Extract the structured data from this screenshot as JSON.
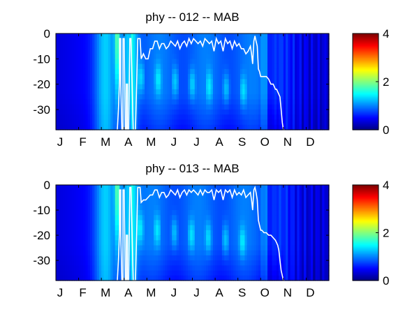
{
  "chart_data": [
    {
      "type": "heatmap",
      "title": "phy -- 012 -- MAB",
      "x_tick_labels": [
        "J",
        "F",
        "M",
        "A",
        "M",
        "J",
        "J",
        "A",
        "S",
        "O",
        "N",
        "D"
      ],
      "y_tick_labels": [
        "0",
        "-10",
        "-20",
        "-30"
      ],
      "ylim": [
        -38,
        0
      ],
      "colorbar": {
        "ticks": [
          "0",
          "2",
          "4"
        ],
        "range": [
          0,
          4
        ],
        "colormap": "jet"
      },
      "overlay_line": {
        "color": "#ffffff",
        "x_month": [
          2.7,
          2.75,
          2.8,
          2.8,
          2.85,
          2.85,
          2.9,
          2.95,
          2.95,
          3.0,
          3.05,
          3.1,
          3.1,
          3.15,
          3.15,
          3.2,
          3.25,
          3.3,
          3.35,
          3.4,
          3.5,
          3.6,
          3.7,
          3.75,
          3.85,
          3.95,
          4.05,
          4.15,
          4.25,
          4.35,
          4.45,
          4.55,
          4.65,
          4.75,
          4.85,
          4.95,
          5.05,
          5.15,
          5.25,
          5.35,
          5.45,
          5.55,
          5.65,
          5.75,
          5.85,
          5.95,
          6.05,
          6.15,
          6.25,
          6.35,
          6.45,
          6.55,
          6.65,
          6.75,
          6.85,
          6.95,
          7.05,
          7.15,
          7.25,
          7.35,
          7.45,
          7.55,
          7.65,
          7.75,
          7.85,
          7.95,
          8.05,
          8.15,
          8.25,
          8.35,
          8.45,
          8.55,
          8.6,
          8.65,
          8.7,
          8.75,
          8.8,
          8.85,
          8.9,
          8.95,
          9.0,
          9.05,
          9.15,
          9.25,
          9.35,
          9.45,
          9.55,
          9.65,
          9.7,
          9.75,
          9.8,
          9.85,
          9.9,
          9.95,
          10.0,
          10.05
        ],
        "depth_m": [
          -38,
          -30,
          -18,
          -2,
          -2,
          -20,
          -38,
          -38,
          -2,
          -2,
          -38,
          -38,
          -20,
          -20,
          -38,
          -38,
          -2,
          -2,
          -20,
          -38,
          -38,
          -2,
          -2,
          -10,
          -8,
          -10,
          -10,
          -6,
          -6,
          -3,
          -3,
          -6,
          -4,
          -4,
          -6,
          -5,
          -3,
          -4,
          -5,
          -3,
          -6,
          -4,
          -3,
          -5,
          -2,
          -4,
          -2,
          -3,
          -4,
          -3,
          -5,
          -2,
          -3,
          -4,
          -3,
          -7,
          -2,
          -4,
          -3,
          -7,
          -2,
          -4,
          -3,
          -6,
          -3,
          -5,
          -4,
          -6,
          -6,
          -8,
          -7,
          -5,
          -8,
          -12,
          -3,
          -1,
          -3,
          -5,
          -14,
          -15,
          -17,
          -17,
          -17,
          -17,
          -18,
          -20,
          -20,
          -22,
          -22,
          -23,
          -24,
          -25,
          -30,
          -35,
          -38,
          -38
        ]
      }
    },
    {
      "type": "heatmap",
      "title": "phy -- 013 -- MAB",
      "x_tick_labels": [
        "J",
        "F",
        "M",
        "A",
        "M",
        "J",
        "J",
        "A",
        "S",
        "O",
        "N",
        "D"
      ],
      "y_tick_labels": [
        "0",
        "-10",
        "-20",
        "-30"
      ],
      "ylim": [
        -38,
        0
      ],
      "colorbar": {
        "ticks": [
          "0",
          "2",
          "4"
        ],
        "range": [
          0,
          4
        ],
        "colormap": "jet"
      },
      "overlay_line": {
        "color": "#ffffff",
        "x_month": [
          2.7,
          2.75,
          2.8,
          2.8,
          2.85,
          2.85,
          2.9,
          2.95,
          2.95,
          3.0,
          3.05,
          3.1,
          3.1,
          3.15,
          3.15,
          3.2,
          3.25,
          3.3,
          3.35,
          3.4,
          3.5,
          3.6,
          3.7,
          3.75,
          3.85,
          3.95,
          4.05,
          4.15,
          4.25,
          4.35,
          4.45,
          4.55,
          4.65,
          4.75,
          4.85,
          4.95,
          5.05,
          5.15,
          5.25,
          5.35,
          5.45,
          5.55,
          5.65,
          5.75,
          5.85,
          5.95,
          6.05,
          6.15,
          6.25,
          6.35,
          6.45,
          6.55,
          6.65,
          6.75,
          6.85,
          6.95,
          7.05,
          7.15,
          7.25,
          7.35,
          7.45,
          7.55,
          7.65,
          7.75,
          7.85,
          7.95,
          8.05,
          8.15,
          8.25,
          8.35,
          8.45,
          8.55,
          8.6,
          8.65,
          8.7,
          8.75,
          8.8,
          8.85,
          8.9,
          8.95,
          9.0,
          9.05,
          9.15,
          9.25,
          9.35,
          9.45,
          9.55,
          9.65,
          9.7,
          9.75,
          9.8,
          9.85,
          9.9,
          9.95,
          10.0,
          10.05
        ],
        "depth_m": [
          -38,
          -30,
          -18,
          -2,
          -2,
          -20,
          -38,
          -38,
          -2,
          -2,
          -38,
          -38,
          -20,
          -20,
          -38,
          -38,
          -1,
          -1,
          -20,
          -38,
          -38,
          -1,
          -1,
          -7,
          -6,
          -6,
          -5,
          -4,
          -4,
          -2,
          -2,
          -5,
          -3,
          -3,
          -5,
          -4,
          -2,
          -3,
          -4,
          -2,
          -5,
          -3,
          -2,
          -4,
          -2,
          -3,
          -2,
          -3,
          -4,
          -2,
          -4,
          -2,
          -3,
          -3,
          -2,
          -6,
          -2,
          -3,
          -2,
          -6,
          -2,
          -3,
          -2,
          -5,
          -2,
          -4,
          -3,
          -4,
          -2,
          -5,
          -4,
          -3,
          -6,
          -10,
          -2,
          -1,
          -3,
          -6,
          -14,
          -16,
          -18,
          -18,
          -19,
          -19,
          -20,
          -20,
          -21,
          -22,
          -23,
          -24,
          -26,
          -30,
          -34,
          -36,
          -38,
          -38
        ]
      }
    }
  ]
}
